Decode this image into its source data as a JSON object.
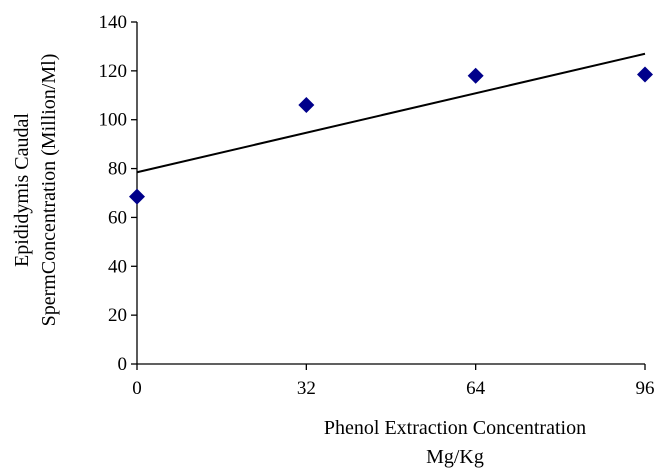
{
  "chart_data": {
    "type": "scatter",
    "title": "",
    "xlabel_lines": [
      "Phenol Extraction Concentration",
      "Mg/Kg"
    ],
    "ylabel_lines": [
      "Epididymis Caudal",
      "SpermConcentration (Million/Ml)"
    ],
    "x_ticks": [
      "0",
      "32",
      "64",
      "96"
    ],
    "y_ticks": [
      "0",
      "20",
      "40",
      "60",
      "80",
      "100",
      "120",
      "140"
    ],
    "xlim": [
      0,
      96
    ],
    "ylim": [
      0,
      140
    ],
    "grid": false,
    "legend": "none",
    "series": [
      {
        "marker": "diamond",
        "color": "#00008B",
        "points": [
          {
            "x": 0,
            "y": 68.5
          },
          {
            "x": 32,
            "y": 106
          },
          {
            "x": 64,
            "y": 118
          },
          {
            "x": 96,
            "y": 118.5
          }
        ]
      }
    ],
    "trendline": {
      "type": "linear",
      "color": "#000000",
      "from": {
        "x": 0,
        "y": 78.5
      },
      "to": {
        "x": 96,
        "y": 127
      }
    }
  }
}
